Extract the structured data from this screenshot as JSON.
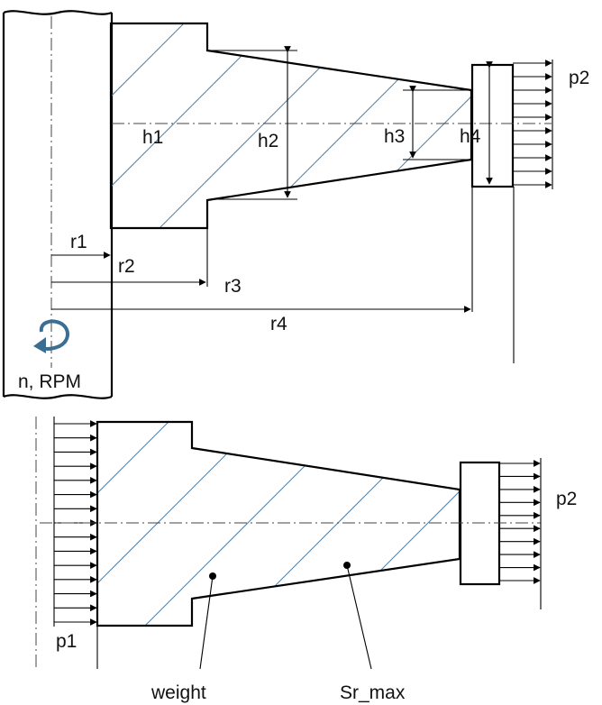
{
  "top_view": {
    "labels": {
      "h1": "h1",
      "h2": "h2",
      "h3": "h3",
      "h4": "h4",
      "p2": "p2",
      "r1": "r1",
      "r2": "r2",
      "r3": "r3",
      "r4": "r4",
      "speed": "n, RPM"
    },
    "icons": {
      "rotation": "rotation-arrow-icon"
    }
  },
  "bottom_view": {
    "labels": {
      "p1": "p1",
      "p2": "p2",
      "weight": "weight",
      "sr_max": "Sr_max"
    }
  },
  "colors": {
    "hatch": "#4f7fa6",
    "rotation_arrow": "#3b6e93",
    "line": "#000000"
  }
}
